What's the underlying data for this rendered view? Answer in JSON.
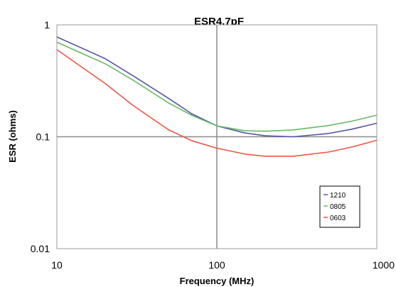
{
  "chart_data": {
    "type": "line",
    "title": "ESR4.7pF",
    "xlabel": "Frequency (MHz)",
    "ylabel": "ESR (ohms)",
    "xscale": "log",
    "yscale": "log",
    "xlim": [
      10,
      1000
    ],
    "ylim": [
      0.01,
      1
    ],
    "x_ticks": [
      {
        "value": 10,
        "label": "10"
      },
      {
        "value": 100,
        "label": "100"
      },
      {
        "value": 1000,
        "label": "1000"
      }
    ],
    "y_ticks": [
      {
        "value": 0.01,
        "label": "0.01"
      },
      {
        "value": 0.1,
        "label": "0.1"
      },
      {
        "value": 1,
        "label": "1"
      }
    ],
    "grid": "major lines at 100 MHz and 0.1 ohms",
    "legend_position": "bottom-right",
    "series": [
      {
        "name": "1210",
        "color": "#5555aa",
        "x": [
          10,
          20,
          30,
          50,
          70,
          100,
          150,
          200,
          300,
          500,
          700,
          1000
        ],
        "y": [
          0.78,
          0.5,
          0.35,
          0.22,
          0.16,
          0.125,
          0.108,
          0.102,
          0.1,
          0.107,
          0.117,
          0.132
        ]
      },
      {
        "name": "0805",
        "color": "#66bb66",
        "x": [
          10,
          20,
          30,
          50,
          70,
          100,
          150,
          200,
          300,
          500,
          700,
          1000
        ],
        "y": [
          0.7,
          0.45,
          0.32,
          0.2,
          0.155,
          0.125,
          0.113,
          0.112,
          0.115,
          0.126,
          0.138,
          0.156
        ]
      },
      {
        "name": "0603",
        "color": "#ee5544",
        "x": [
          10,
          20,
          30,
          50,
          70,
          100,
          150,
          200,
          300,
          500,
          700,
          1000
        ],
        "y": [
          0.6,
          0.3,
          0.19,
          0.115,
          0.092,
          0.079,
          0.07,
          0.067,
          0.067,
          0.073,
          0.081,
          0.093
        ]
      }
    ]
  }
}
